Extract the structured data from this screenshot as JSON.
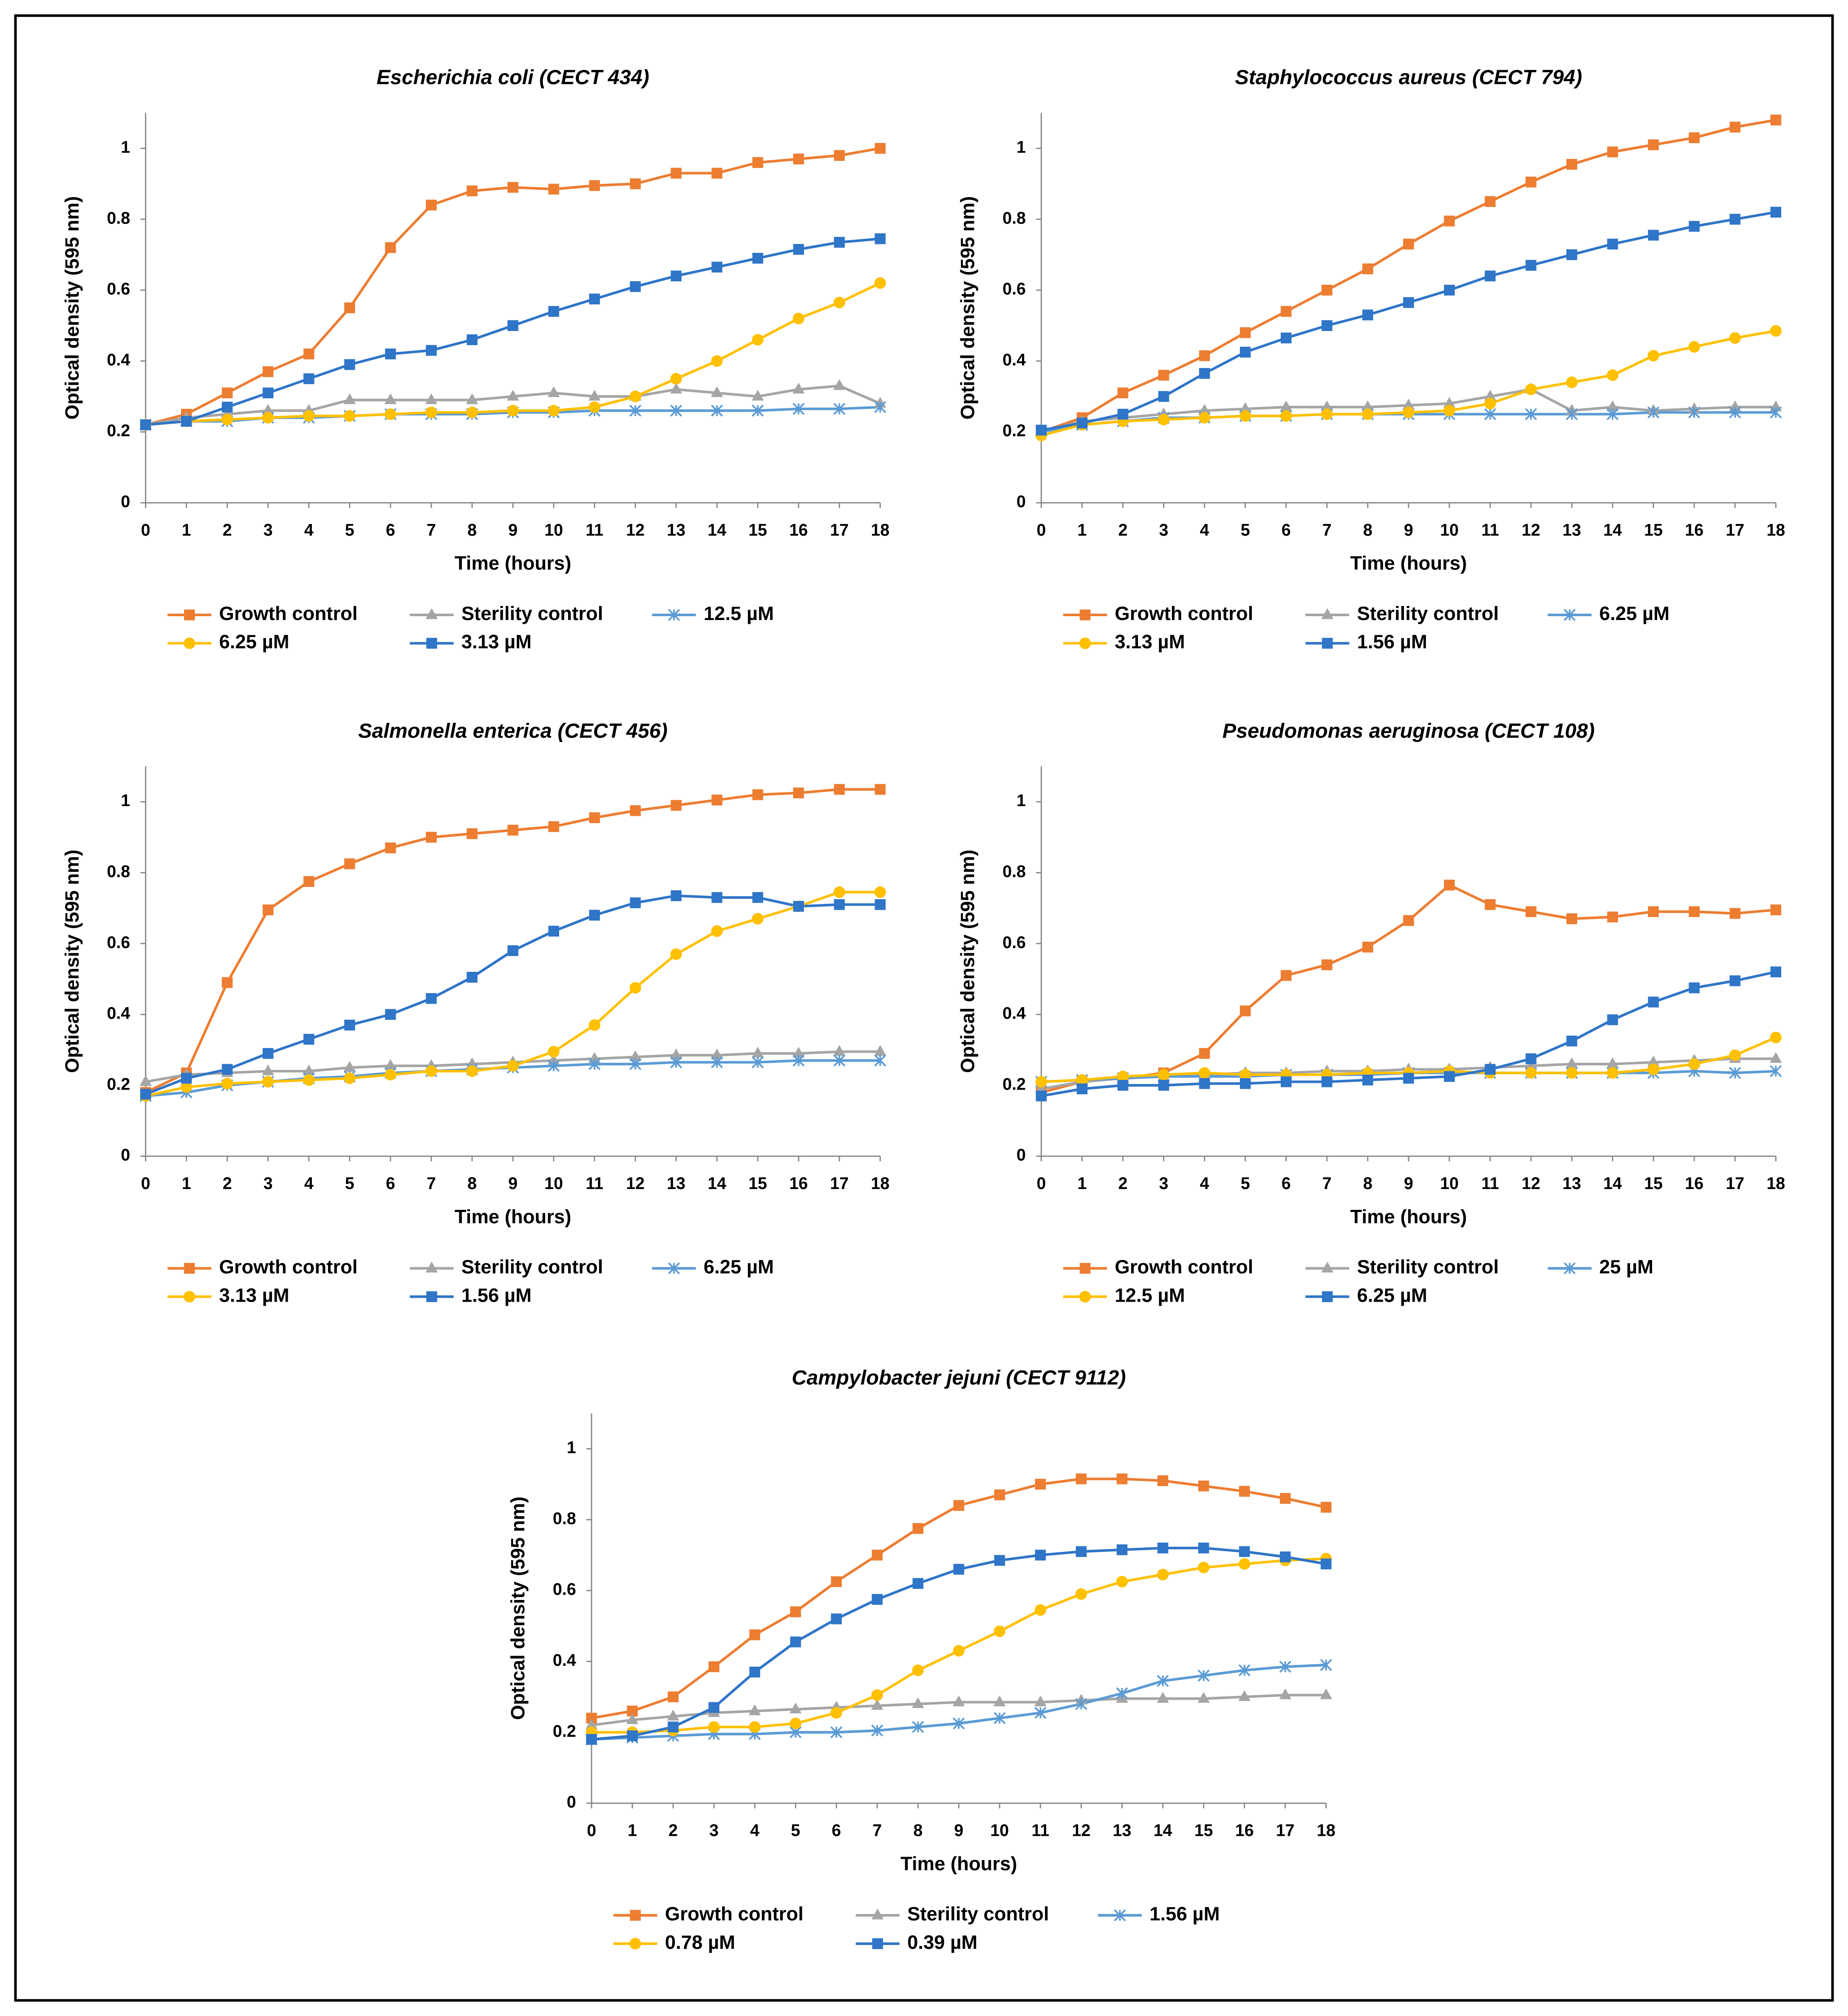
{
  "chart_data": [
    {
      "type": "line",
      "title": "Escherichia coli (CECT 434)",
      "x_label": "Time (hours)",
      "y_label": "Optical density (595 nm)",
      "x": [
        0,
        1,
        2,
        3,
        4,
        5,
        6,
        7,
        8,
        9,
        10,
        11,
        12,
        13,
        14,
        15,
        16,
        17,
        18
      ],
      "xlim": [
        0,
        18
      ],
      "xticks": [
        0,
        1,
        2,
        3,
        4,
        5,
        6,
        7,
        8,
        9,
        10,
        11,
        12,
        13,
        14,
        15,
        16,
        17,
        18
      ],
      "ylim": [
        0,
        1.1
      ],
      "yticks": [
        0,
        0.2,
        0.4,
        0.6,
        0.8,
        1
      ],
      "grid": false,
      "series": [
        {
          "name": "Growth control",
          "color": "#ED7D31",
          "marker": "square",
          "values": [
            0.22,
            0.25,
            0.31,
            0.37,
            0.42,
            0.55,
            0.72,
            0.84,
            0.88,
            0.89,
            0.885,
            0.895,
            0.9,
            0.93,
            0.93,
            0.96,
            0.97,
            0.98,
            1.0
          ]
        },
        {
          "name": "Sterility control",
          "color": "#A5A5A5",
          "marker": "triangle",
          "values": [
            0.22,
            0.24,
            0.25,
            0.26,
            0.26,
            0.29,
            0.29,
            0.29,
            0.29,
            0.3,
            0.31,
            0.3,
            0.3,
            0.32,
            0.31,
            0.3,
            0.32,
            0.33,
            0.28
          ]
        },
        {
          "name": "12.5 µM",
          "color": "#5B9BD5",
          "marker": "x",
          "values": [
            0.22,
            0.23,
            0.23,
            0.24,
            0.24,
            0.245,
            0.25,
            0.25,
            0.25,
            0.255,
            0.255,
            0.26,
            0.26,
            0.26,
            0.26,
            0.26,
            0.265,
            0.265,
            0.27
          ]
        },
        {
          "name": "6.25 µM",
          "color": "#FFC000",
          "marker": "circle",
          "values": [
            0.22,
            0.23,
            0.235,
            0.24,
            0.245,
            0.245,
            0.25,
            0.255,
            0.255,
            0.26,
            0.26,
            0.27,
            0.3,
            0.35,
            0.4,
            0.46,
            0.52,
            0.565,
            0.62
          ]
        },
        {
          "name": "3.13 µM",
          "color": "#2F75C8",
          "marker": "square",
          "values": [
            0.22,
            0.23,
            0.27,
            0.31,
            0.35,
            0.39,
            0.42,
            0.43,
            0.46,
            0.5,
            0.54,
            0.575,
            0.61,
            0.64,
            0.665,
            0.69,
            0.715,
            0.735,
            0.745
          ]
        }
      ]
    },
    {
      "type": "line",
      "title": "Staphylococcus aureus (CECT 794)",
      "x_label": "Time (hours)",
      "y_label": "Optical density (595 nm)",
      "x": [
        0,
        1,
        2,
        3,
        4,
        5,
        6,
        7,
        8,
        9,
        10,
        11,
        12,
        13,
        14,
        15,
        16,
        17,
        18
      ],
      "xlim": [
        0,
        18
      ],
      "xticks": [
        0,
        1,
        2,
        3,
        4,
        5,
        6,
        7,
        8,
        9,
        10,
        11,
        12,
        13,
        14,
        15,
        16,
        17,
        18
      ],
      "ylim": [
        0,
        1.1
      ],
      "yticks": [
        0,
        0.2,
        0.4,
        0.6,
        0.8,
        1
      ],
      "grid": false,
      "series": [
        {
          "name": "Growth control",
          "color": "#ED7D31",
          "marker": "square",
          "values": [
            0.2,
            0.24,
            0.31,
            0.36,
            0.415,
            0.48,
            0.54,
            0.6,
            0.66,
            0.73,
            0.795,
            0.85,
            0.905,
            0.955,
            0.99,
            1.01,
            1.03,
            1.06,
            1.08
          ]
        },
        {
          "name": "Sterility control",
          "color": "#A5A5A5",
          "marker": "triangle",
          "values": [
            0.2,
            0.23,
            0.24,
            0.25,
            0.26,
            0.265,
            0.27,
            0.27,
            0.27,
            0.275,
            0.28,
            0.3,
            0.32,
            0.26,
            0.27,
            0.26,
            0.265,
            0.27,
            0.27
          ]
        },
        {
          "name": "6.25 µM",
          "color": "#5B9BD5",
          "marker": "x",
          "values": [
            0.2,
            0.22,
            0.23,
            0.24,
            0.24,
            0.245,
            0.245,
            0.25,
            0.25,
            0.25,
            0.25,
            0.25,
            0.25,
            0.25,
            0.25,
            0.255,
            0.255,
            0.255,
            0.255
          ]
        },
        {
          "name": "3.13 µM",
          "color": "#FFC000",
          "marker": "circle",
          "values": [
            0.19,
            0.22,
            0.23,
            0.235,
            0.24,
            0.245,
            0.245,
            0.25,
            0.25,
            0.255,
            0.26,
            0.28,
            0.32,
            0.34,
            0.36,
            0.415,
            0.44,
            0.465,
            0.485
          ]
        },
        {
          "name": "1.56 µM",
          "color": "#2F75C8",
          "marker": "square",
          "values": [
            0.205,
            0.225,
            0.25,
            0.3,
            0.365,
            0.425,
            0.465,
            0.5,
            0.53,
            0.565,
            0.6,
            0.64,
            0.67,
            0.7,
            0.73,
            0.755,
            0.78,
            0.8,
            0.82
          ]
        }
      ]
    },
    {
      "type": "line",
      "title": "Salmonella enterica (CECT 456)",
      "x_label": "Time (hours)",
      "y_label": "Optical density (595 nm)",
      "x": [
        0,
        1,
        2,
        3,
        4,
        5,
        6,
        7,
        8,
        9,
        10,
        11,
        12,
        13,
        14,
        15,
        16,
        17,
        18
      ],
      "xlim": [
        0,
        18
      ],
      "xticks": [
        0,
        1,
        2,
        3,
        4,
        5,
        6,
        7,
        8,
        9,
        10,
        11,
        12,
        13,
        14,
        15,
        16,
        17,
        18
      ],
      "ylim": [
        0,
        1.1
      ],
      "yticks": [
        0,
        0.2,
        0.4,
        0.6,
        0.8,
        1
      ],
      "grid": false,
      "series": [
        {
          "name": "Growth control",
          "color": "#ED7D31",
          "marker": "square",
          "values": [
            0.18,
            0.235,
            0.49,
            0.695,
            0.775,
            0.825,
            0.87,
            0.9,
            0.91,
            0.92,
            0.93,
            0.955,
            0.975,
            0.99,
            1.005,
            1.02,
            1.025,
            1.035,
            1.035
          ]
        },
        {
          "name": "Sterility control",
          "color": "#A5A5A5",
          "marker": "triangle",
          "values": [
            0.21,
            0.23,
            0.235,
            0.24,
            0.24,
            0.25,
            0.255,
            0.255,
            0.26,
            0.265,
            0.27,
            0.275,
            0.28,
            0.285,
            0.285,
            0.29,
            0.29,
            0.295,
            0.295
          ]
        },
        {
          "name": "6.25 µM",
          "color": "#5B9BD5",
          "marker": "x",
          "values": [
            0.17,
            0.18,
            0.2,
            0.21,
            0.22,
            0.225,
            0.235,
            0.24,
            0.245,
            0.25,
            0.255,
            0.26,
            0.26,
            0.265,
            0.265,
            0.265,
            0.27,
            0.27,
            0.27
          ]
        },
        {
          "name": "3.13 µM",
          "color": "#FFC000",
          "marker": "circle",
          "values": [
            0.17,
            0.195,
            0.205,
            0.21,
            0.215,
            0.22,
            0.23,
            0.24,
            0.24,
            0.255,
            0.295,
            0.37,
            0.475,
            0.57,
            0.635,
            0.67,
            0.705,
            0.745,
            0.745
          ]
        },
        {
          "name": "1.56 µM",
          "color": "#2F75C8",
          "marker": "square",
          "values": [
            0.175,
            0.22,
            0.245,
            0.29,
            0.33,
            0.37,
            0.4,
            0.445,
            0.505,
            0.58,
            0.635,
            0.68,
            0.715,
            0.735,
            0.73,
            0.73,
            0.705,
            0.71,
            0.71
          ]
        }
      ]
    },
    {
      "type": "line",
      "title": "Pseudomonas aeruginosa (CECT 108)",
      "x_label": "Time (hours)",
      "y_label": "Optical density (595 nm)",
      "x": [
        0,
        1,
        2,
        3,
        4,
        5,
        6,
        7,
        8,
        9,
        10,
        11,
        12,
        13,
        14,
        15,
        16,
        17,
        18
      ],
      "xlim": [
        0,
        18
      ],
      "xticks": [
        0,
        1,
        2,
        3,
        4,
        5,
        6,
        7,
        8,
        9,
        10,
        11,
        12,
        13,
        14,
        15,
        16,
        17,
        18
      ],
      "ylim": [
        0,
        1.1
      ],
      "yticks": [
        0,
        0.2,
        0.4,
        0.6,
        0.8,
        1
      ],
      "grid": false,
      "series": [
        {
          "name": "Growth control",
          "color": "#ED7D31",
          "marker": "square",
          "values": [
            0.18,
            0.21,
            0.22,
            0.235,
            0.29,
            0.41,
            0.51,
            0.54,
            0.59,
            0.665,
            0.765,
            0.71,
            0.69,
            0.67,
            0.675,
            0.69,
            0.69,
            0.685,
            0.695
          ]
        },
        {
          "name": "Sterility control",
          "color": "#A5A5A5",
          "marker": "triangle",
          "values": [
            0.19,
            0.21,
            0.22,
            0.225,
            0.23,
            0.235,
            0.235,
            0.24,
            0.24,
            0.245,
            0.245,
            0.25,
            0.255,
            0.26,
            0.26,
            0.265,
            0.27,
            0.275,
            0.275
          ]
        },
        {
          "name": "25 µM",
          "color": "#5B9BD5",
          "marker": "x",
          "values": [
            0.21,
            0.215,
            0.22,
            0.225,
            0.225,
            0.225,
            0.23,
            0.23,
            0.23,
            0.235,
            0.235,
            0.235,
            0.235,
            0.235,
            0.235,
            0.235,
            0.24,
            0.235,
            0.24
          ]
        },
        {
          "name": "12.5 µM",
          "color": "#FFC000",
          "marker": "circle",
          "values": [
            0.21,
            0.215,
            0.225,
            0.23,
            0.235,
            0.23,
            0.23,
            0.23,
            0.235,
            0.235,
            0.24,
            0.235,
            0.235,
            0.235,
            0.235,
            0.245,
            0.26,
            0.285,
            0.335
          ]
        },
        {
          "name": "6.25 µM",
          "color": "#2F75C8",
          "marker": "square",
          "values": [
            0.17,
            0.19,
            0.2,
            0.2,
            0.205,
            0.205,
            0.21,
            0.21,
            0.215,
            0.22,
            0.225,
            0.245,
            0.275,
            0.325,
            0.385,
            0.435,
            0.475,
            0.495,
            0.52
          ]
        }
      ]
    },
    {
      "type": "line",
      "title": "Campylobacter jejuni (CECT 9112)",
      "x_label": "Time (hours)",
      "y_label": "Optical density (595 nm)",
      "x": [
        0,
        1,
        2,
        3,
        4,
        5,
        6,
        7,
        8,
        9,
        10,
        11,
        12,
        13,
        14,
        15,
        16,
        17,
        18
      ],
      "xlim": [
        0,
        18
      ],
      "xticks": [
        0,
        1,
        2,
        3,
        4,
        5,
        6,
        7,
        8,
        9,
        10,
        11,
        12,
        13,
        14,
        15,
        16,
        17,
        18
      ],
      "ylim": [
        0,
        1.1
      ],
      "yticks": [
        0,
        0.2,
        0.4,
        0.6,
        0.8,
        1
      ],
      "grid": false,
      "series": [
        {
          "name": "Growth control",
          "color": "#ED7D31",
          "marker": "square",
          "values": [
            0.24,
            0.26,
            0.3,
            0.385,
            0.475,
            0.54,
            0.625,
            0.7,
            0.775,
            0.84,
            0.87,
            0.9,
            0.915,
            0.915,
            0.91,
            0.895,
            0.88,
            0.86,
            0.835
          ]
        },
        {
          "name": "Sterility control",
          "color": "#A5A5A5",
          "marker": "triangle",
          "values": [
            0.22,
            0.235,
            0.245,
            0.255,
            0.26,
            0.265,
            0.27,
            0.275,
            0.28,
            0.285,
            0.285,
            0.285,
            0.29,
            0.295,
            0.295,
            0.295,
            0.3,
            0.305,
            0.305
          ]
        },
        {
          "name": "1.56 µM",
          "color": "#5B9BD5",
          "marker": "x",
          "values": [
            0.18,
            0.185,
            0.19,
            0.195,
            0.195,
            0.2,
            0.2,
            0.205,
            0.215,
            0.225,
            0.24,
            0.255,
            0.28,
            0.31,
            0.345,
            0.36,
            0.375,
            0.385,
            0.39
          ]
        },
        {
          "name": "0.78 µM",
          "color": "#FFC000",
          "marker": "circle",
          "values": [
            0.2,
            0.2,
            0.205,
            0.215,
            0.215,
            0.225,
            0.255,
            0.305,
            0.375,
            0.43,
            0.485,
            0.545,
            0.59,
            0.625,
            0.645,
            0.665,
            0.675,
            0.685,
            0.69
          ]
        },
        {
          "name": "0.39 µM",
          "color": "#2F75C8",
          "marker": "square",
          "values": [
            0.18,
            0.19,
            0.215,
            0.27,
            0.37,
            0.455,
            0.52,
            0.575,
            0.62,
            0.66,
            0.685,
            0.7,
            0.71,
            0.715,
            0.72,
            0.72,
            0.71,
            0.695,
            0.675
          ]
        }
      ]
    }
  ]
}
